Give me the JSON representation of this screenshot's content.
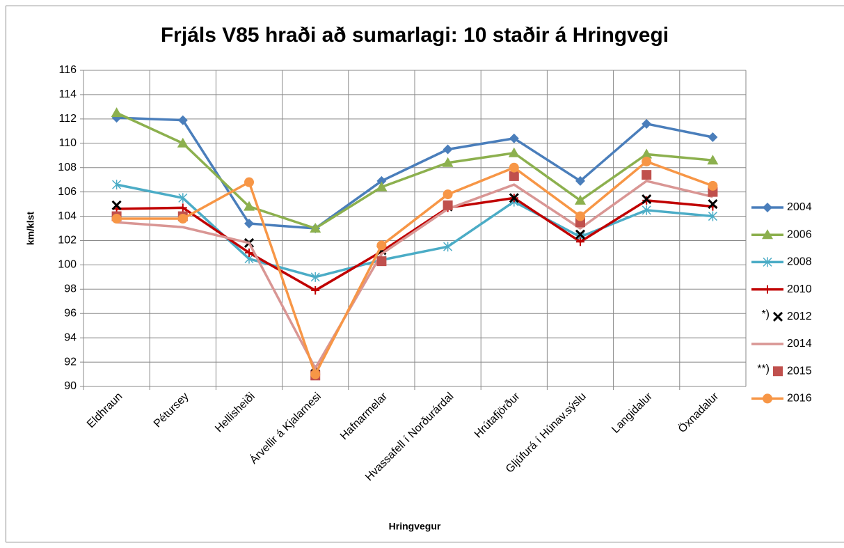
{
  "chart_data": {
    "type": "line",
    "title": "Frjáls V85 hraði að sumarlagi: 10 staðir á Hringvegi",
    "x_label": "Hringvegur",
    "y_label": "km/klst",
    "categories": [
      "Eldhraun",
      "Pétursey",
      "Hellisheiði",
      "Árvellir á Kjalarnesi",
      "Hafnarmelar",
      "Hvassafell í Norðurárdal",
      "Hrútafjörður",
      "Gljúfurá í Húnav.sýslu",
      "Langidalur",
      "Öxnadalur"
    ],
    "ylim": [
      90,
      116
    ],
    "yticks": [
      90,
      92,
      94,
      96,
      98,
      100,
      102,
      104,
      106,
      108,
      110,
      112,
      114,
      116
    ],
    "grid": true,
    "legend": "right",
    "series": [
      {
        "name": "2004",
        "color": "#4a7ebb",
        "marker": "diamond",
        "line": true,
        "values": [
          112.1,
          111.9,
          103.4,
          103.0,
          106.9,
          109.5,
          110.4,
          106.9,
          111.6,
          110.5
        ]
      },
      {
        "name": "2006",
        "color": "#8cb04e",
        "marker": "triangle",
        "line": true,
        "values": [
          112.5,
          110.0,
          104.8,
          103.0,
          106.4,
          108.4,
          109.2,
          105.3,
          109.1,
          108.6
        ]
      },
      {
        "name": "2008",
        "color": "#4bacc6",
        "marker": "asterisk",
        "line": true,
        "values": [
          106.6,
          105.5,
          100.5,
          99.0,
          100.4,
          101.5,
          105.2,
          102.3,
          104.5,
          104.0
        ]
      },
      {
        "name": "2010",
        "color": "#c00000",
        "marker": "plus",
        "line": true,
        "values": [
          104.6,
          104.7,
          101.0,
          97.9,
          101.1,
          104.7,
          105.5,
          101.9,
          105.3,
          104.8
        ]
      },
      {
        "name": "2012",
        "note": "*)",
        "color": "#000000",
        "marker": "x",
        "line": false,
        "values": [
          104.9,
          null,
          101.8,
          91.6,
          101.2,
          104.8,
          105.5,
          102.5,
          105.4,
          105.0
        ]
      },
      {
        "name": "2014",
        "color": "#d99694",
        "marker": "none",
        "line": true,
        "values": [
          103.5,
          103.1,
          101.8,
          91.5,
          100.9,
          104.6,
          106.6,
          103.0,
          106.9,
          105.6
        ]
      },
      {
        "name": "2015",
        "note": "**)",
        "color": "#c0504d",
        "marker": "square",
        "line": false,
        "values": [
          104.0,
          104.0,
          null,
          90.9,
          100.3,
          104.9,
          107.3,
          103.5,
          107.4,
          106.0
        ]
      },
      {
        "name": "2016",
        "color": "#f79646",
        "marker": "circle",
        "line": true,
        "values": [
          103.8,
          103.8,
          106.8,
          91.0,
          101.6,
          105.8,
          108.0,
          104.0,
          108.5,
          106.5
        ]
      }
    ]
  }
}
